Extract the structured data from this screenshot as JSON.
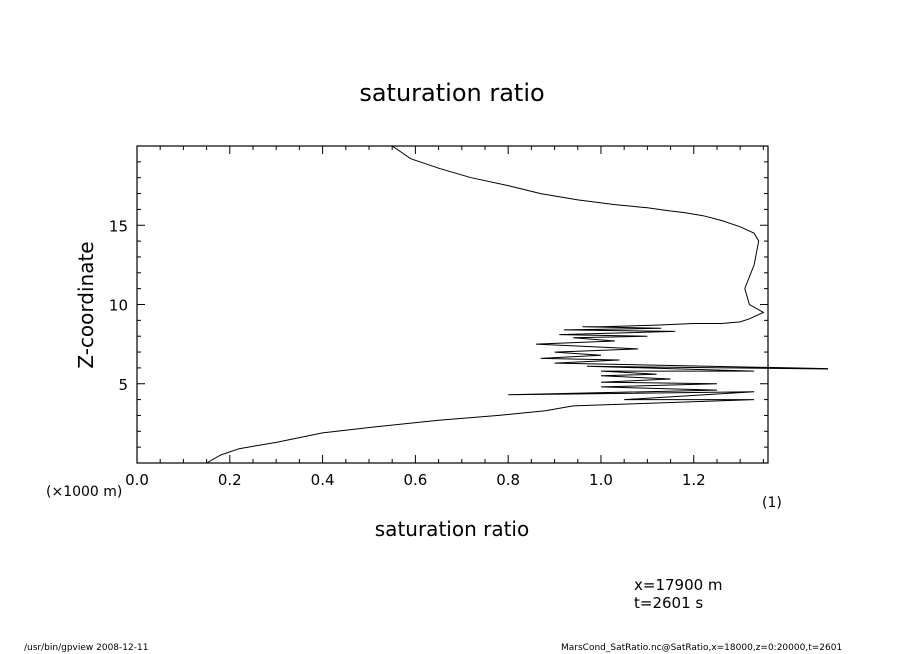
{
  "chart_data": {
    "type": "line",
    "title": "saturation ratio",
    "xlabel": "saturation ratio",
    "ylabel": "Z-coordinate",
    "x_unit_label": "(1)",
    "y_unit_label": "(×1000 m)",
    "xlim": [
      0.0,
      1.36
    ],
    "ylim": [
      0,
      20
    ],
    "x_ticks": [
      "0.0",
      "0.2",
      "0.4",
      "0.6",
      "0.8",
      "1.0",
      "1.2"
    ],
    "y_ticks": [
      "5",
      "10",
      "15"
    ],
    "grid": false,
    "series": [
      {
        "x": [
          0.15,
          0.18,
          0.22,
          0.3,
          0.4,
          0.52,
          0.65,
          0.78,
          0.88,
          0.94,
          1.33,
          1.05,
          1.33,
          0.8,
          1.25,
          1.0,
          1.25,
          1.0,
          1.15,
          1.0,
          1.12,
          1.0,
          1.33,
          0.97,
          1.58,
          0.9,
          1.04,
          0.87,
          1.0,
          0.9,
          1.08,
          0.86,
          1.03,
          0.94,
          1.1,
          0.91,
          1.16,
          0.92,
          1.13,
          0.96,
          1.0,
          1.12,
          1.2,
          1.26,
          1.3,
          1.32,
          1.35,
          1.32,
          1.31,
          1.33,
          1.34,
          1.33,
          1.3,
          1.26,
          1.22,
          1.18,
          1.15,
          1.1,
          1.03,
          0.95,
          0.87,
          0.8,
          0.72,
          0.65,
          0.59,
          0.55
        ],
        "y": [
          0.0,
          0.5,
          0.9,
          1.3,
          1.9,
          2.3,
          2.7,
          3.0,
          3.3,
          3.6,
          4.0,
          4.0,
          4.5,
          4.3,
          4.6,
          4.8,
          5.0,
          5.1,
          5.3,
          5.5,
          5.6,
          5.8,
          5.8,
          6.1,
          5.9,
          6.3,
          6.5,
          6.6,
          6.8,
          7.0,
          7.2,
          7.5,
          7.7,
          7.9,
          8.0,
          8.1,
          8.3,
          8.4,
          8.5,
          8.6,
          8.6,
          8.7,
          8.8,
          8.8,
          8.9,
          9.1,
          9.5,
          10.0,
          11.0,
          12.5,
          14.0,
          14.5,
          14.9,
          15.3,
          15.6,
          15.8,
          15.9,
          16.1,
          16.3,
          16.6,
          17.0,
          17.5,
          18.0,
          18.6,
          19.2,
          20.0
        ]
      }
    ]
  },
  "annotations": {
    "position_line1": "x=17900  m",
    "position_line2": "t=2601  s"
  },
  "footer": {
    "left": "/usr/bin/gpview   2008-12-11",
    "right": "MarsCond_SatRatio.nc@SatRatio,x=18000,z=0:20000,t=2601"
  }
}
